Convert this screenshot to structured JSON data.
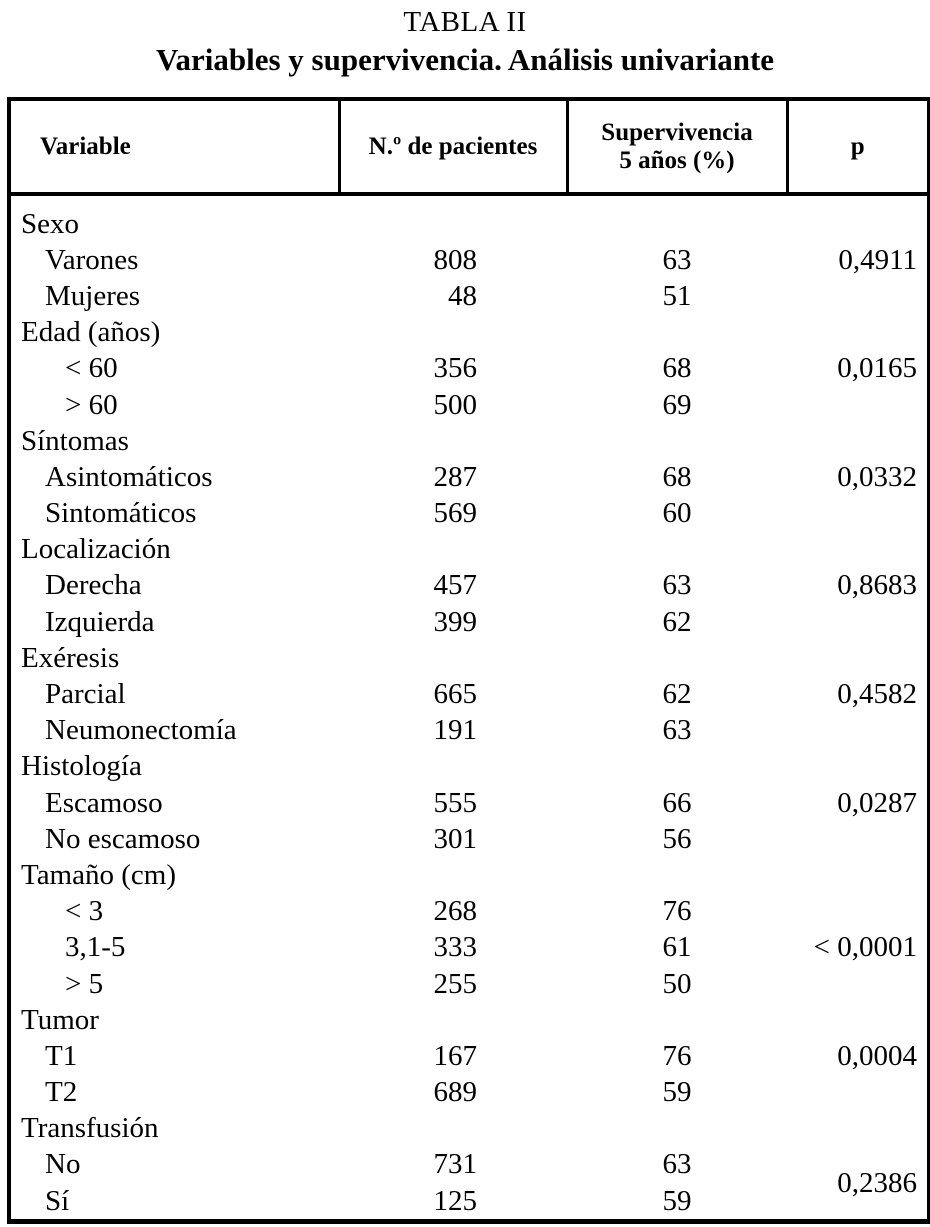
{
  "title": "TABLA II",
  "subtitle": "Variables y supervivencia. Análisis univariante",
  "colors": {
    "text": "#000000",
    "background": "#ffffff",
    "border": "#000000"
  },
  "table": {
    "headers": {
      "variable": "Variable",
      "patients": "N.º de pacientes",
      "survival": "Supervivencia\n5 años (%)",
      "p": "p"
    },
    "rows": [
      {
        "label": "Sexo",
        "type": "group"
      },
      {
        "label": "Varones",
        "type": "sub",
        "n": "808",
        "survival": "63",
        "p": "0,4911"
      },
      {
        "label": "Mujeres",
        "type": "sub",
        "n": "48",
        "survival": "51"
      },
      {
        "label": "Edad (años)",
        "type": "group"
      },
      {
        "label": "< 60",
        "type": "subdeep",
        "n": "356",
        "survival": "68",
        "p": "0,0165"
      },
      {
        "label": "> 60",
        "type": "subdeep",
        "n": "500",
        "survival": "69"
      },
      {
        "label": "Síntomas",
        "type": "group"
      },
      {
        "label": "Asintomáticos",
        "type": "sub",
        "n": "287",
        "survival": "68",
        "p": "0,0332"
      },
      {
        "label": "Sintomáticos",
        "type": "sub",
        "n": "569",
        "survival": "60"
      },
      {
        "label": "Localización",
        "type": "group"
      },
      {
        "label": "Derecha",
        "type": "sub",
        "n": "457",
        "survival": "63",
        "p": "0,8683"
      },
      {
        "label": "Izquierda",
        "type": "sub",
        "n": "399",
        "survival": "62"
      },
      {
        "label": "Exéresis",
        "type": "group"
      },
      {
        "label": "Parcial",
        "type": "sub",
        "n": "665",
        "survival": "62",
        "p": "0,4582"
      },
      {
        "label": "Neumonectomía",
        "type": "sub",
        "n": "191",
        "survival": "63"
      },
      {
        "label": "Histología",
        "type": "group"
      },
      {
        "label": "Escamoso",
        "type": "sub",
        "n": "555",
        "survival": "66",
        "p": "0,0287"
      },
      {
        "label": "No escamoso",
        "type": "sub",
        "n": "301",
        "survival": "56"
      },
      {
        "label": "Tamaño (cm)",
        "type": "group"
      },
      {
        "label": "< 3",
        "type": "subdeep",
        "n": "268",
        "survival": "76"
      },
      {
        "label": "3,1-5",
        "type": "subdeep",
        "n": "333",
        "survival": "61",
        "p": "< 0,0001"
      },
      {
        "label": "> 5",
        "type": "subdeep",
        "n": "255",
        "survival": "50"
      },
      {
        "label": "Tumor",
        "type": "group"
      },
      {
        "label": "T1",
        "type": "sub",
        "n": "167",
        "survival": "76",
        "p": "0,0004"
      },
      {
        "label": "T2",
        "type": "sub",
        "n": "689",
        "survival": "59"
      },
      {
        "label": "Transfusión",
        "type": "group"
      },
      {
        "label": "No",
        "type": "sub",
        "n": "731",
        "survival": "63",
        "p": "0,2386",
        "p_rowspan": 2
      },
      {
        "label": "Sí",
        "type": "sub",
        "n": "125",
        "survival": "59",
        "p_merged": true
      }
    ]
  }
}
